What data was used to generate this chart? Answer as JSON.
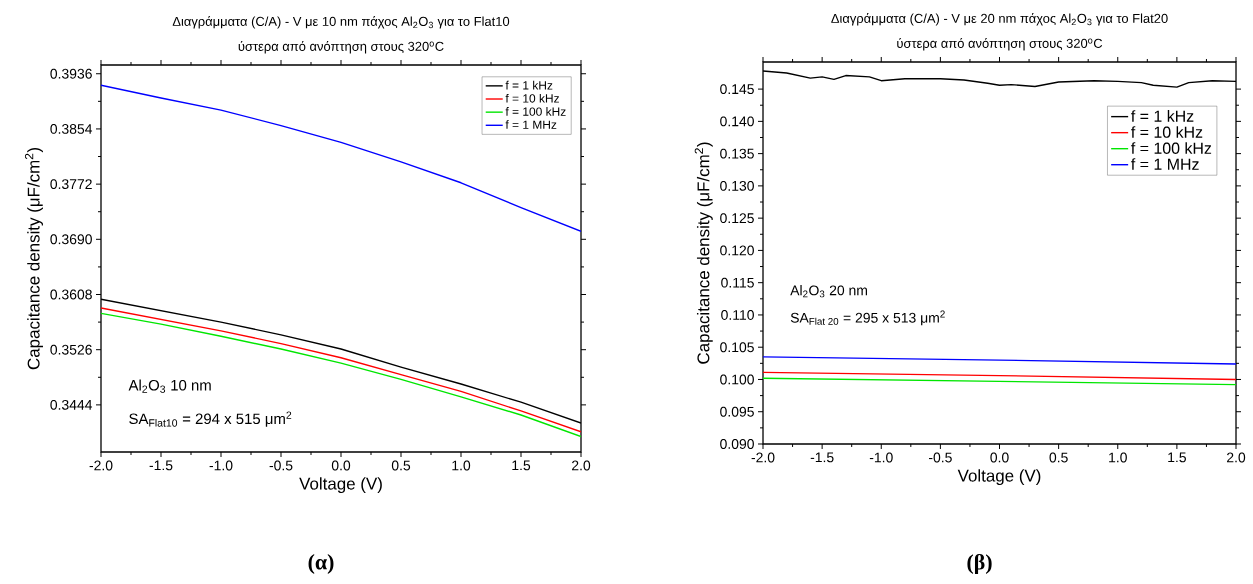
{
  "chart_data": [
    {
      "type": "line",
      "title": "Διαγράμματα (C/A) - V με 10 nm πάχος Al$_{2}$O$_{3}$ για το Flat10",
      "subtitle": "ύστερα από ανόπτηση στους 320$^{o}$C",
      "xlabel": "Voltage (V)",
      "ylabel": "Capacitance density (μF/cm$^{2}$)",
      "annotations": [
        "Al$_{2}$O$_{3}$ 10 nm",
        "SA$_{Flat10}$ = 294 x 515 μm$^{2}$",
        "(α)"
      ],
      "xlim": [
        -2.0,
        2.0
      ],
      "ylim": [
        0.3374,
        0.3949
      ],
      "xticks": [
        {
          "value": -2,
          "label": "-2.0"
        },
        {
          "value": -1.5,
          "label": "-1.5"
        },
        {
          "value": -1,
          "label": "-1.0"
        },
        {
          "value": -0.5,
          "label": "-0.5"
        },
        {
          "value": 0,
          "label": "0.0"
        },
        {
          "value": 0.5,
          "label": "0.5"
        },
        {
          "value": 1,
          "label": "1.0"
        },
        {
          "value": 1.5,
          "label": "1.5"
        },
        {
          "value": 2,
          "label": "2.0"
        }
      ],
      "yticks": [
        0.3444,
        0.3526,
        0.3608,
        {
          "value": 0.369,
          "label": "0.3690"
        },
        0.3772,
        0.3854,
        0.3936
      ],
      "legend": "top right",
      "line_style": "solid",
      "series": [
        {
          "name": "f = 1 kHz",
          "color": "#000000",
          "x": [
            -2,
            -1.5,
            -1,
            -0.5,
            0,
            0.5,
            1,
            1.5,
            2
          ],
          "values": [
            0.3601,
            0.3584,
            0.3567,
            0.3548,
            0.3527,
            0.35,
            0.3475,
            0.3448,
            0.3417
          ]
        },
        {
          "name": "f = 10 kHz",
          "color": "#ff0000",
          "x": [
            -2,
            -1.5,
            -1,
            -0.5,
            0,
            0.5,
            1,
            1.5,
            2
          ],
          "values": [
            0.3588,
            0.3571,
            0.3554,
            0.3535,
            0.3514,
            0.3489,
            0.3464,
            0.3435,
            0.3404
          ]
        },
        {
          "name": "f = 100 kHz",
          "color": "#00e600",
          "x": [
            -2,
            -1.5,
            -1,
            -0.5,
            0,
            0.5,
            1,
            1.5,
            2
          ],
          "values": [
            0.358,
            0.3564,
            0.3546,
            0.3527,
            0.3506,
            0.3482,
            0.3456,
            0.3429,
            0.3397
          ]
        },
        {
          "name": "f = 1 MHz",
          "color": "#0000ff",
          "x": [
            -2,
            -1.5,
            -1,
            -0.5,
            0,
            0.5,
            1,
            1.5,
            2
          ],
          "values": [
            0.3919,
            0.39,
            0.3882,
            0.3859,
            0.3834,
            0.3805,
            0.3774,
            0.3737,
            0.3702
          ]
        }
      ]
    },
    {
      "type": "line",
      "title": "Διαγράμματα (C/A) - V με 20 nm πάχος Al$_{2}$O$_{3}$ για το Flat20",
      "subtitle": "ύστερα από ανόπτηση στους 320$^{o}$C",
      "xlabel": "Voltage (V)",
      "ylabel": "Capacitance density (μF/cm$^{2}$)",
      "annotations": [
        "Al$_{2}$O$_{3}$ 20 nm",
        "SA$_{Flat 20}$ = 295 x 513 μm$^{2}$",
        "(β)"
      ],
      "xlim": [
        -2.0,
        2.0
      ],
      "ylim": [
        0.09,
        0.1492
      ],
      "xticks": [
        {
          "value": -2,
          "label": "-2.0"
        },
        {
          "value": -1.5,
          "label": "-1.5"
        },
        {
          "value": -1,
          "label": "-1.0"
        },
        {
          "value": -0.5,
          "label": "-0.5"
        },
        {
          "value": 0,
          "label": "0.0"
        },
        {
          "value": 0.5,
          "label": "0.5"
        },
        {
          "value": 1,
          "label": "1.0"
        },
        {
          "value": 1.5,
          "label": "1.5"
        },
        {
          "value": 2,
          "label": "2.0"
        }
      ],
      "yticks": [
        {
          "value": 0.09,
          "label": "0.090"
        },
        {
          "value": 0.095,
          "label": "0.095"
        },
        {
          "value": 0.1,
          "label": "0.100"
        },
        {
          "value": 0.105,
          "label": "0.105"
        },
        {
          "value": 0.11,
          "label": "0.110"
        },
        {
          "value": 0.115,
          "label": "0.115"
        },
        {
          "value": 0.12,
          "label": "0.120"
        },
        {
          "value": 0.125,
          "label": "0.125"
        },
        {
          "value": 0.13,
          "label": "0.130"
        },
        {
          "value": 0.135,
          "label": "0.135"
        },
        {
          "value": 0.14,
          "label": "0.140"
        },
        {
          "value": 0.145,
          "label": "0.145"
        }
      ],
      "legend": "top right",
      "line_style": "solid",
      "series": [
        {
          "name": "f = 1 kHz",
          "color": "#000000",
          "x": [
            -2,
            -1.8,
            -1.6,
            -1.5,
            -1.4,
            -1.3,
            -1.1,
            -1.0,
            -0.8,
            -0.5,
            -0.3,
            -0.1,
            0,
            0.1,
            0.3,
            0.5,
            0.8,
            1.0,
            1.2,
            1.3,
            1.5,
            1.6,
            1.8,
            2.0
          ],
          "values": [
            0.1478,
            0.1475,
            0.1467,
            0.1469,
            0.1465,
            0.1471,
            0.1469,
            0.1463,
            0.1466,
            0.1466,
            0.1464,
            0.1459,
            0.1456,
            0.1457,
            0.1454,
            0.1461,
            0.1463,
            0.1462,
            0.146,
            0.1456,
            0.1453,
            0.146,
            0.1463,
            0.1462
          ]
        },
        {
          "name": "f = 10 kHz",
          "color": "#ff0000",
          "x": [
            -2,
            0,
            2
          ],
          "values": [
            0.1011,
            0.1006,
            0.1
          ]
        },
        {
          "name": "f = 100 kHz",
          "color": "#00e600",
          "x": [
            -2,
            0,
            2
          ],
          "values": [
            0.1002,
            0.0997,
            0.0992
          ]
        },
        {
          "name": "f = 1 MHz",
          "color": "#0000ff",
          "x": [
            -2,
            0,
            2
          ],
          "values": [
            0.1035,
            0.103,
            0.1024
          ]
        }
      ]
    }
  ]
}
